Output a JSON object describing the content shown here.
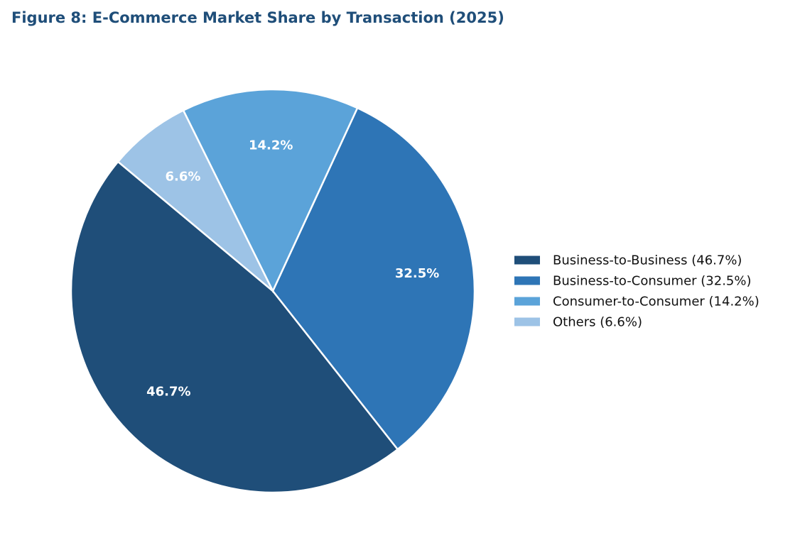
{
  "chart_data": {
    "type": "pie",
    "title": "Figure 8: E-Commerce Market Share by Transaction (2025)",
    "labels": [
      "Business-to-Business (46.7%)",
      "Business-to-Consumer (32.5%)",
      "Consumer-to-Consumer (14.2%)",
      "Others (6.6%)"
    ],
    "values": [
      46.7,
      32.5,
      14.2,
      6.6
    ],
    "value_labels": [
      "46.7%",
      "32.5%",
      "14.2%",
      "6.6%"
    ],
    "colors": [
      "#1f4e79",
      "#2e75b6",
      "#5ba3d9",
      "#9dc3e6"
    ],
    "legend": "right"
  }
}
